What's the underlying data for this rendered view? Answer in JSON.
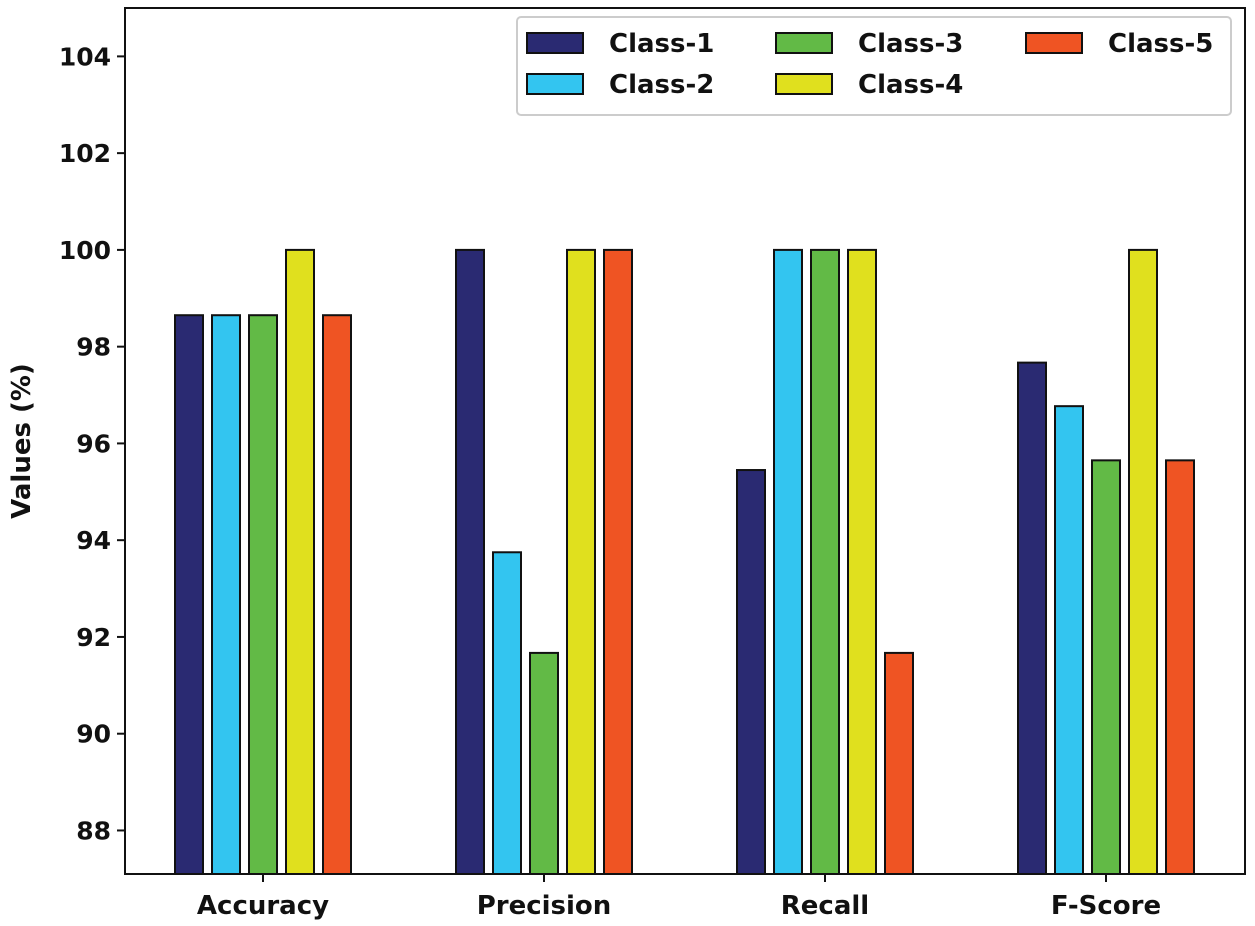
{
  "chart_data": {
    "type": "bar",
    "title": "",
    "xlabel": "",
    "ylabel": "Values (%)",
    "ylim": [
      87.1,
      105.0
    ],
    "yticks": [
      88,
      90,
      92,
      94,
      96,
      98,
      100,
      102,
      104
    ],
    "categories": [
      "Accuracy",
      "Precision",
      "Recall",
      "F-Score"
    ],
    "series": [
      {
        "name": "Class-1",
        "color": "#2a2a72",
        "values": [
          98.65,
          100.0,
          95.45,
          97.67
        ]
      },
      {
        "name": "Class-2",
        "color": "#33c5f0",
        "values": [
          98.65,
          93.75,
          100.0,
          96.77
        ]
      },
      {
        "name": "Class-3",
        "color": "#62ba46",
        "values": [
          98.65,
          91.67,
          100.0,
          95.65
        ]
      },
      {
        "name": "Class-4",
        "color": "#e0e01e",
        "values": [
          100.0,
          100.0,
          100.0,
          100.0
        ]
      },
      {
        "name": "Class-5",
        "color": "#ef5423",
        "values": [
          98.65,
          100.0,
          91.67,
          95.65
        ]
      }
    ],
    "legend_position": "top-right",
    "legend_columns": 3,
    "grid": false
  }
}
